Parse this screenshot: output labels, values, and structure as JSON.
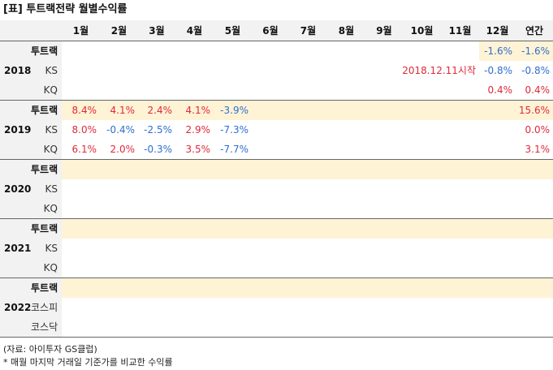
{
  "title": "[표] 투트랙전략 월별수익률",
  "header": {
    "columns": [
      "1월",
      "2월",
      "3월",
      "4월",
      "5월",
      "6월",
      "7월",
      "8월",
      "9월",
      "10월",
      "11월",
      "12월",
      "연간"
    ]
  },
  "groups": [
    {
      "year": "2018",
      "note": "2018.12.11시작",
      "rows": [
        {
          "label": "투트랙",
          "values": [
            "",
            "",
            "",
            "",
            "",
            "",
            "",
            "",
            "",
            "",
            "",
            "-1.6%",
            "-1.6%"
          ]
        },
        {
          "label": "KS",
          "values": [
            "",
            "",
            "",
            "",
            "",
            "",
            "",
            "",
            "",
            "",
            "",
            "-0.8%",
            "-0.8%"
          ]
        },
        {
          "label": "KQ",
          "values": [
            "",
            "",
            "",
            "",
            "",
            "",
            "",
            "",
            "",
            "",
            "",
            "0.4%",
            "0.4%"
          ]
        }
      ]
    },
    {
      "year": "2019",
      "rows": [
        {
          "label": "투트랙",
          "values": [
            "8.4%",
            "4.1%",
            "2.4%",
            "4.1%",
            "-3.9%",
            "",
            "",
            "",
            "",
            "",
            "",
            "",
            "15.6%"
          ]
        },
        {
          "label": "KS",
          "values": [
            "8.0%",
            "-0.4%",
            "-2.5%",
            "2.9%",
            "-7.3%",
            "",
            "",
            "",
            "",
            "",
            "",
            "",
            "0.0%"
          ]
        },
        {
          "label": "KQ",
          "values": [
            "6.1%",
            "2.0%",
            "-0.3%",
            "3.5%",
            "-7.7%",
            "",
            "",
            "",
            "",
            "",
            "",
            "",
            "3.1%"
          ]
        }
      ]
    },
    {
      "year": "2020",
      "rows": [
        {
          "label": "투트랙",
          "values": []
        },
        {
          "label": "KS",
          "values": []
        },
        {
          "label": "KQ",
          "values": []
        }
      ]
    },
    {
      "year": "2021",
      "rows": [
        {
          "label": "투트랙",
          "values": []
        },
        {
          "label": "KS",
          "values": []
        },
        {
          "label": "KQ",
          "values": []
        }
      ]
    },
    {
      "year": "2022",
      "rows": [
        {
          "label": "투트랙",
          "values": []
        },
        {
          "label": "코스피",
          "values": []
        },
        {
          "label": "코스닥",
          "values": []
        }
      ]
    }
  ],
  "footnotes": {
    "source": "(자료: 아이투자 GS클럽)",
    "note": "* 매월 마지막 거래일 기준가를 비교한 수익률"
  },
  "colors": {
    "positive": "#e0293a",
    "negative": "#2f6ecf",
    "strategy_row_fill": "#fff3d6",
    "header_fill": "#f2f2f2"
  }
}
